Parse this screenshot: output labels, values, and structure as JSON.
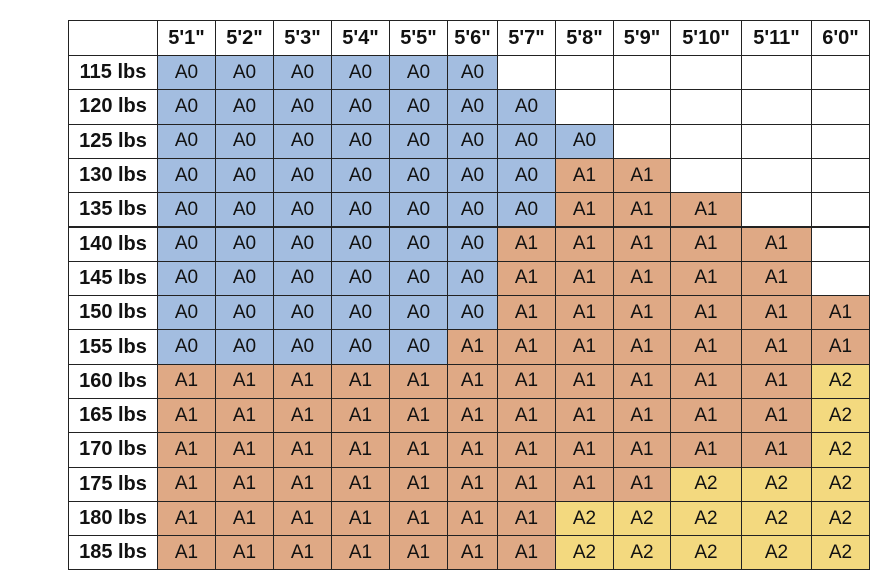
{
  "table": {
    "header": [
      "5'1\"",
      "5'2\"",
      "5'3\"",
      "5'4\"",
      "5'5\"",
      "5'6\"",
      "5'7\"",
      "5'8\"",
      "5'9\"",
      "5'10\"",
      "5'11\"",
      "6'0\""
    ],
    "cell_colors": {
      "A0": "#a3bde0",
      "A1": "#dfa985",
      "A2": "#f3d97f"
    },
    "rows": [
      [
        "115 lbs",
        "A0",
        "A0",
        "A0",
        "A0",
        "A0",
        "A0",
        null,
        null,
        null,
        null,
        null,
        null
      ],
      [
        "120 lbs",
        "A0",
        "A0",
        "A0",
        "A0",
        "A0",
        "A0",
        "A0",
        null,
        null,
        null,
        null,
        null
      ],
      [
        "125 lbs",
        "A0",
        "A0",
        "A0",
        "A0",
        "A0",
        "A0",
        "A0",
        "A0",
        null,
        null,
        null,
        null
      ],
      [
        "130 lbs",
        "A0",
        "A0",
        "A0",
        "A0",
        "A0",
        "A0",
        "A0",
        "A1",
        "A1",
        null,
        null,
        null
      ],
      [
        "135 lbs",
        "A0",
        "A0",
        "A0",
        "A0",
        "A0",
        "A0",
        "A0",
        "A1",
        "A1",
        "A1",
        null,
        null
      ],
      [
        "140 lbs",
        "A0",
        "A0",
        "A0",
        "A0",
        "A0",
        "A0",
        "A1",
        "A1",
        "A1",
        "A1",
        "A1",
        null
      ],
      [
        "145 lbs",
        "A0",
        "A0",
        "A0",
        "A0",
        "A0",
        "A0",
        "A1",
        "A1",
        "A1",
        "A1",
        "A1",
        null
      ],
      [
        "150 lbs",
        "A0",
        "A0",
        "A0",
        "A0",
        "A0",
        "A0",
        "A1",
        "A1",
        "A1",
        "A1",
        "A1",
        "A1"
      ],
      [
        "155 lbs",
        "A0",
        "A0",
        "A0",
        "A0",
        "A0",
        "A1",
        "A1",
        "A1",
        "A1",
        "A1",
        "A1",
        "A1"
      ],
      [
        "160 lbs",
        "A1",
        "A1",
        "A1",
        "A1",
        "A1",
        "A1",
        "A1",
        "A1",
        "A1",
        "A1",
        "A1",
        "A2"
      ],
      [
        "165 lbs",
        "A1",
        "A1",
        "A1",
        "A1",
        "A1",
        "A1",
        "A1",
        "A1",
        "A1",
        "A1",
        "A1",
        "A2"
      ],
      [
        "170 lbs",
        "A1",
        "A1",
        "A1",
        "A1",
        "A1",
        "A1",
        "A1",
        "A1",
        "A1",
        "A1",
        "A1",
        "A2"
      ],
      [
        "175 lbs",
        "A1",
        "A1",
        "A1",
        "A1",
        "A1",
        "A1",
        "A1",
        "A1",
        "A1",
        "A2",
        "A2",
        "A2"
      ],
      [
        "180 lbs",
        "A1",
        "A1",
        "A1",
        "A1",
        "A1",
        "A1",
        "A1",
        "A2",
        "A2",
        "A2",
        "A2",
        "A2"
      ],
      [
        "185 lbs",
        "A1",
        "A1",
        "A1",
        "A1",
        "A1",
        "A1",
        "A1",
        "A2",
        "A2",
        "A2",
        "A2",
        "A2"
      ]
    ]
  }
}
